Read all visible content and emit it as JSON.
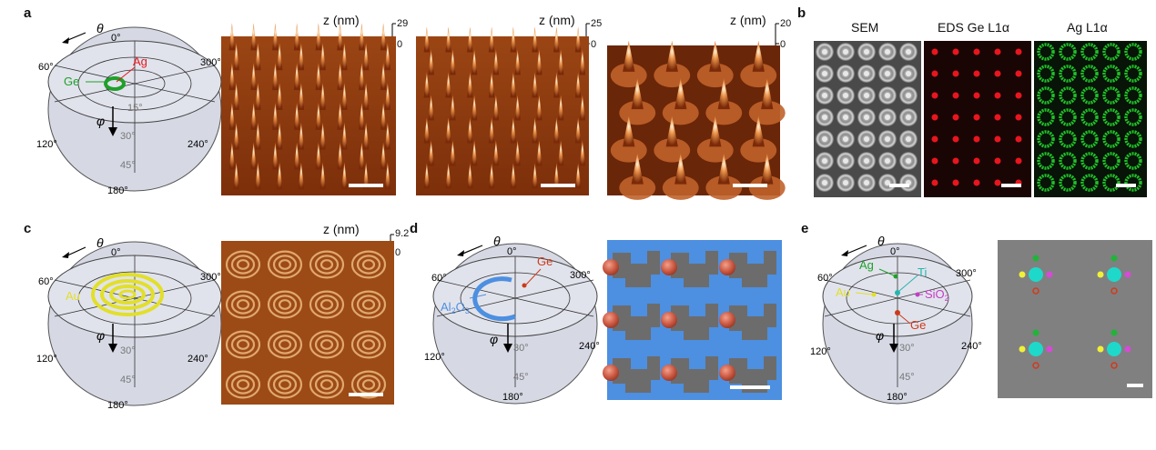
{
  "panels": {
    "a": {
      "label": "a",
      "hemisphere": {
        "theta": "θ",
        "phi": "φ",
        "az": [
          "0°",
          "60°",
          "300°",
          "120°",
          "240°",
          "180°"
        ],
        "polar": [
          "15°",
          "30°",
          "45°"
        ],
        "materials": [
          "Ag",
          "Ge"
        ]
      },
      "afm": [
        {
          "zlabel": "z (nm)",
          "top": "29",
          "zero": "0"
        },
        {
          "zlabel": "z (nm)",
          "top": "25",
          "zero": "0"
        },
        {
          "zlabel": "z (nm)",
          "top": "20",
          "zero": "0"
        }
      ]
    },
    "b": {
      "label": "b",
      "titles": [
        "SEM",
        "EDS Ge L1α",
        "Ag L1α"
      ]
    },
    "c": {
      "label": "c",
      "hemisphere": {
        "theta": "θ",
        "phi": "φ",
        "az": [
          "0°",
          "60°",
          "300°",
          "120°",
          "240°",
          "180°"
        ],
        "polar": [
          "30°",
          "45°"
        ],
        "materials": [
          "Au"
        ]
      },
      "afm": {
        "zlabel": "z (nm)",
        "top": "9.2",
        "zero": "0"
      }
    },
    "d": {
      "label": "d",
      "hemisphere": {
        "theta": "θ",
        "phi": "φ",
        "az": [
          "0°",
          "60°",
          "300°",
          "120°",
          "240°",
          "180°"
        ],
        "polar": [
          "30°",
          "45°"
        ],
        "materials": [
          "Ge",
          "Al",
          "2",
          "O",
          "3"
        ]
      }
    },
    "e": {
      "label": "e",
      "hemisphere": {
        "theta": "θ",
        "phi": "φ",
        "az": [
          "0°",
          "60°",
          "300°",
          "120°",
          "240°",
          "180°"
        ],
        "polar": [
          "30°",
          "45°"
        ],
        "materials": [
          "Ag",
          "Ti",
          "Au",
          "SiO",
          "2",
          "Ge"
        ]
      }
    }
  },
  "colors": {
    "ag_red": "#e8161e",
    "ge_green": "#1fa02a",
    "au_yellow": "#e2df2a",
    "al2o3_blue": "#4d8fe0",
    "ti_cyan": "#25b5ad",
    "sio2_magenta": "#c43dc6",
    "ge_red": "#cc3a1c",
    "afm_brown": "#b35a1f"
  }
}
